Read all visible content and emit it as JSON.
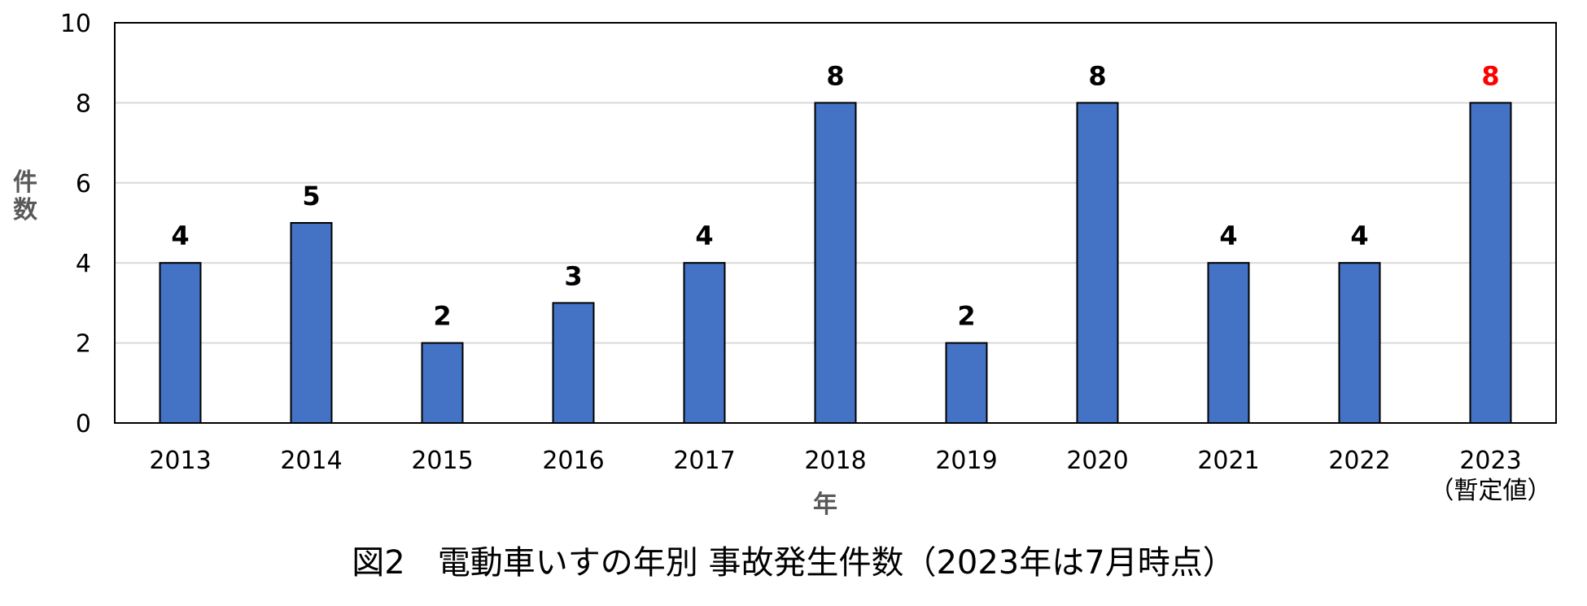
{
  "chart_data": {
    "type": "bar",
    "title": "図2　電動車いすの年別 事故発生件数（2023年は7月時点）",
    "xlabel": "年",
    "ylabel": "件数",
    "categories": [
      "2013",
      "2014",
      "2015",
      "2016",
      "2017",
      "2018",
      "2019",
      "2020",
      "2021",
      "2022",
      "2023"
    ],
    "category_notes": [
      "",
      "",
      "",
      "",
      "",
      "",
      "",
      "",
      "",
      "",
      "（暫定値）"
    ],
    "values": [
      4,
      5,
      2,
      3,
      4,
      8,
      2,
      8,
      4,
      4,
      8
    ],
    "ylim": [
      0,
      10
    ],
    "yticks": [
      0,
      2,
      4,
      6,
      8,
      10
    ],
    "grid": true,
    "legend": "none",
    "colors": {
      "bar": "#4472C4",
      "bar_edge": "#000000",
      "label": "#000000",
      "highlight_label": "#FF0000",
      "grid": "#D9D9D9"
    },
    "highlight_index": 10
  }
}
